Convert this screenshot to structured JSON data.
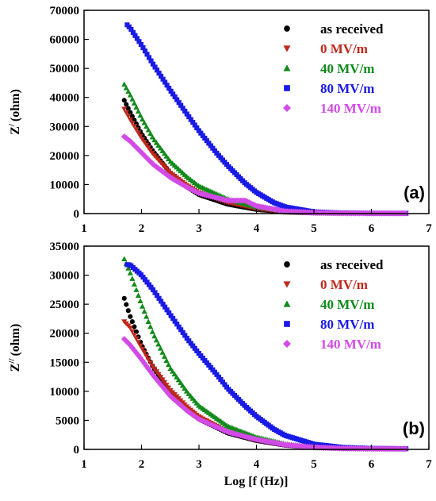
{
  "chart_data": [
    {
      "type": "scatter",
      "panel_label": "(a)",
      "xlabel": "",
      "ylabel": "Z/ (ohm)",
      "ylabel_main": "Z",
      "ylabel_sup": "/",
      "ylabel_unit": "(ohm)",
      "xlim": [
        1,
        7
      ],
      "ylim": [
        0,
        70000
      ],
      "x_ticks": [
        "1",
        "2",
        "3",
        "4",
        "5",
        "6",
        "7"
      ],
      "y_ticks": [
        "0",
        "10000",
        "20000",
        "30000",
        "40000",
        "50000",
        "60000",
        "70000"
      ],
      "legend_position": "top-right",
      "series": [
        {
          "name": "as received",
          "color": "#000000",
          "marker": "circle",
          "points": [
            [
              1.7,
              39000
            ],
            [
              1.8,
              35000
            ],
            [
              2.0,
              27500
            ],
            [
              2.2,
              21500
            ],
            [
              2.5,
              14000
            ],
            [
              2.8,
              9000
            ],
            [
              3.0,
              6500
            ],
            [
              3.5,
              3200
            ],
            [
              4.0,
              1400
            ],
            [
              4.5,
              500
            ],
            [
              5.0,
              200
            ],
            [
              5.5,
              120
            ],
            [
              6.0,
              90
            ],
            [
              6.6,
              80
            ]
          ]
        },
        {
          "name": "0 MV/m",
          "color": "#c0281c",
          "marker": "triangle-down",
          "points": [
            [
              1.7,
              36000
            ],
            [
              1.8,
              32500
            ],
            [
              2.0,
              26000
            ],
            [
              2.2,
              20500
            ],
            [
              2.5,
              14000
            ],
            [
              2.8,
              9500
            ],
            [
              3.0,
              7200
            ],
            [
              3.5,
              3800
            ],
            [
              4.0,
              1700
            ],
            [
              4.5,
              600
            ],
            [
              5.0,
              250
            ],
            [
              5.5,
              130
            ],
            [
              6.0,
              100
            ],
            [
              6.6,
              90
            ]
          ]
        },
        {
          "name": "40 MV/m",
          "color": "#118a1b",
          "marker": "triangle-up",
          "points": [
            [
              1.7,
              44500
            ],
            [
              1.8,
              41000
            ],
            [
              2.0,
              33000
            ],
            [
              2.2,
              26000
            ],
            [
              2.5,
              18000
            ],
            [
              2.8,
              12500
            ],
            [
              3.0,
              9500
            ],
            [
              3.5,
              5000
            ],
            [
              4.0,
              2300
            ],
            [
              4.5,
              900
            ],
            [
              5.0,
              350
            ],
            [
              5.5,
              160
            ],
            [
              6.0,
              110
            ],
            [
              6.6,
              100
            ]
          ]
        },
        {
          "name": "80 MV/m",
          "color": "#1a1ae6",
          "marker": "square",
          "points": [
            [
              1.75,
              65000
            ],
            [
              1.8,
              64000
            ],
            [
              2.0,
              58000
            ],
            [
              2.2,
              51500
            ],
            [
              2.5,
              42500
            ],
            [
              2.8,
              34000
            ],
            [
              3.0,
              28500
            ],
            [
              3.3,
              21000
            ],
            [
              3.5,
              16500
            ],
            [
              3.8,
              10500
            ],
            [
              4.0,
              7300
            ],
            [
              4.3,
              3800
            ],
            [
              4.5,
              2300
            ],
            [
              5.0,
              600
            ],
            [
              5.5,
              200
            ],
            [
              6.0,
              120
            ],
            [
              6.6,
              100
            ]
          ]
        },
        {
          "name": "140 MV/m",
          "color": "#d24be6",
          "marker": "diamond",
          "points": [
            [
              1.7,
              26500
            ],
            [
              1.8,
              25000
            ],
            [
              2.0,
              21000
            ],
            [
              2.2,
              17000
            ],
            [
              2.5,
              12500
            ],
            [
              2.8,
              9000
            ],
            [
              3.0,
              7000
            ],
            [
              3.5,
              4500
            ],
            [
              3.8,
              4500
            ],
            [
              4.0,
              2600
            ],
            [
              4.5,
              800
            ],
            [
              5.0,
              300
            ],
            [
              5.5,
              150
            ],
            [
              6.0,
              100
            ],
            [
              6.6,
              90
            ]
          ]
        }
      ]
    },
    {
      "type": "scatter",
      "panel_label": "(b)",
      "xlabel": "Log [f (Hz)]",
      "ylabel": "Z// (ohm)",
      "ylabel_main": "Z",
      "ylabel_sup": "//",
      "ylabel_unit": "(ohm)",
      "xlim": [
        1,
        7
      ],
      "ylim": [
        0,
        35000
      ],
      "x_ticks": [
        "1",
        "2",
        "3",
        "4",
        "5",
        "6",
        "7"
      ],
      "y_ticks": [
        "0",
        "5000",
        "10000",
        "15000",
        "20000",
        "25000",
        "30000",
        "35000"
      ],
      "legend_position": "top-right",
      "series": [
        {
          "name": "as received",
          "color": "#000000",
          "marker": "circle",
          "points": [
            [
              1.7,
              26000
            ],
            [
              1.8,
              23000
            ],
            [
              2.0,
              18000
            ],
            [
              2.2,
              14200
            ],
            [
              2.5,
              9800
            ],
            [
              2.8,
              6800
            ],
            [
              3.0,
              5200
            ],
            [
              3.5,
              2800
            ],
            [
              4.0,
              1500
            ],
            [
              4.5,
              700
            ],
            [
              5.0,
              300
            ],
            [
              5.5,
              150
            ],
            [
              6.0,
              100
            ],
            [
              6.6,
              80
            ]
          ]
        },
        {
          "name": "0 MV/m",
          "color": "#c0281c",
          "marker": "triangle-down",
          "points": [
            [
              1.7,
              22000
            ],
            [
              1.8,
              21000
            ],
            [
              2.0,
              17500
            ],
            [
              2.2,
              14200
            ],
            [
              2.5,
              10200
            ],
            [
              2.8,
              7200
            ],
            [
              3.0,
              5600
            ],
            [
              3.5,
              3000
            ],
            [
              4.0,
              1600
            ],
            [
              4.5,
              750
            ],
            [
              5.0,
              320
            ],
            [
              5.5,
              160
            ],
            [
              6.0,
              110
            ],
            [
              6.6,
              90
            ]
          ]
        },
        {
          "name": "40 MV/m",
          "color": "#118a1b",
          "marker": "triangle-up",
          "points": [
            [
              1.7,
              32800
            ],
            [
              1.8,
              30500
            ],
            [
              2.0,
              25000
            ],
            [
              2.2,
              20000
            ],
            [
              2.5,
              14000
            ],
            [
              2.8,
              9800
            ],
            [
              3.0,
              7500
            ],
            [
              3.5,
              4000
            ],
            [
              4.0,
              2100
            ],
            [
              4.5,
              950
            ],
            [
              5.0,
              400
            ],
            [
              5.5,
              180
            ],
            [
              6.0,
              120
            ],
            [
              6.6,
              100
            ]
          ]
        },
        {
          "name": "80 MV/m",
          "color": "#1a1ae6",
          "marker": "square",
          "points": [
            [
              1.75,
              31800
            ],
            [
              1.8,
              31800
            ],
            [
              2.0,
              30000
            ],
            [
              2.2,
              27500
            ],
            [
              2.5,
              23200
            ],
            [
              2.8,
              19000
            ],
            [
              3.0,
              16500
            ],
            [
              3.3,
              13000
            ],
            [
              3.5,
              10500
            ],
            [
              3.8,
              7500
            ],
            [
              4.0,
              5700
            ],
            [
              4.3,
              3500
            ],
            [
              4.5,
              2400
            ],
            [
              5.0,
              900
            ],
            [
              5.5,
              350
            ],
            [
              6.0,
              180
            ],
            [
              6.6,
              120
            ]
          ]
        },
        {
          "name": "140 MV/m",
          "color": "#d24be6",
          "marker": "diamond",
          "points": [
            [
              1.7,
              19000
            ],
            [
              1.8,
              18000
            ],
            [
              2.0,
              15500
            ],
            [
              2.2,
              12800
            ],
            [
              2.5,
              9200
            ],
            [
              2.8,
              6600
            ],
            [
              3.0,
              5200
            ],
            [
              3.5,
              3000
            ],
            [
              4.0,
              1700
            ],
            [
              4.5,
              800
            ],
            [
              5.0,
              350
            ],
            [
              5.5,
              170
            ],
            [
              6.0,
              110
            ],
            [
              6.6,
              90
            ]
          ]
        }
      ]
    }
  ]
}
